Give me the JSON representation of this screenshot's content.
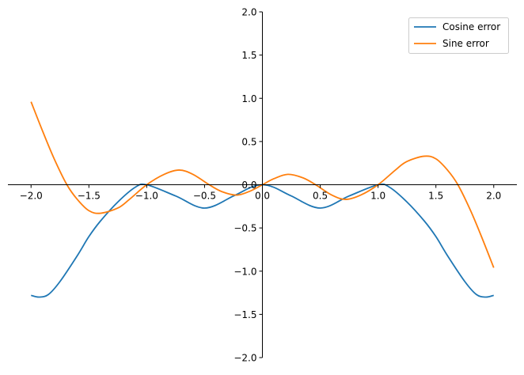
{
  "chart_data": {
    "type": "line",
    "title": "",
    "xlabel": "",
    "ylabel": "",
    "xlim": [
      -2.2,
      2.2
    ],
    "ylim": [
      -2.0,
      2.0
    ],
    "xticks": [
      -2.0,
      -1.5,
      -1.0,
      -0.5,
      0.0,
      0.5,
      1.0,
      1.5,
      2.0
    ],
    "xtick_labels": [
      "−2.0",
      "−1.5",
      "−1.0",
      "−0.5",
      "0.0",
      "0.5",
      "1.0",
      "1.5",
      "2.0"
    ],
    "yticks": [
      -2.0,
      -1.5,
      -1.0,
      -0.5,
      0.0,
      0.5,
      1.0,
      1.5,
      2.0
    ],
    "ytick_labels": [
      "−2.0",
      "−1.5",
      "−1.0",
      "−0.5",
      "0.0",
      "0.5",
      "1.0",
      "1.5",
      "2.0"
    ],
    "grid": false,
    "spines": "centered at origin",
    "legend_position": "top-right",
    "series": [
      {
        "name": "Cosine error",
        "color": "#1f77b4",
        "x": [
          -2.0,
          -1.93,
          -1.85,
          -1.75,
          -1.6,
          -1.5,
          -1.4,
          -1.25,
          -1.1,
          -1.0,
          -0.75,
          -0.5,
          -0.25,
          -0.1,
          0.0,
          0.1,
          0.25,
          0.5,
          0.75,
          1.0,
          1.1,
          1.25,
          1.4,
          1.5,
          1.6,
          1.75,
          1.85,
          1.93,
          2.0
        ],
        "y": [
          -1.28,
          -1.3,
          -1.27,
          -1.12,
          -0.82,
          -0.6,
          -0.42,
          -0.2,
          -0.03,
          0.0,
          -0.13,
          -0.27,
          -0.13,
          -0.03,
          0.0,
          -0.03,
          -0.13,
          -0.27,
          -0.13,
          0.0,
          -0.03,
          -0.2,
          -0.42,
          -0.6,
          -0.82,
          -1.12,
          -1.27,
          -1.3,
          -1.28
        ]
      },
      {
        "name": "Sine error",
        "color": "#ff7f0e",
        "x": [
          -2.0,
          -1.9,
          -1.8,
          -1.69,
          -1.6,
          -1.5,
          -1.4,
          -1.25,
          -1.15,
          -1.0,
          -0.85,
          -0.72,
          -0.6,
          -0.46,
          -0.35,
          -0.22,
          -0.1,
          0.0,
          0.1,
          0.22,
          0.35,
          0.46,
          0.6,
          0.72,
          0.85,
          1.0,
          1.15,
          1.25,
          1.4,
          1.5,
          1.6,
          1.69,
          1.8,
          1.9,
          2.0
        ],
        "y": [
          0.96,
          0.62,
          0.3,
          0.0,
          -0.17,
          -0.3,
          -0.33,
          -0.27,
          -0.17,
          0.0,
          0.12,
          0.17,
          0.12,
          0.0,
          -0.08,
          -0.12,
          -0.07,
          0.0,
          0.07,
          0.12,
          0.08,
          0.0,
          -0.12,
          -0.17,
          -0.12,
          0.0,
          0.17,
          0.27,
          0.33,
          0.3,
          0.17,
          0.0,
          -0.3,
          -0.62,
          -0.96
        ]
      }
    ]
  }
}
